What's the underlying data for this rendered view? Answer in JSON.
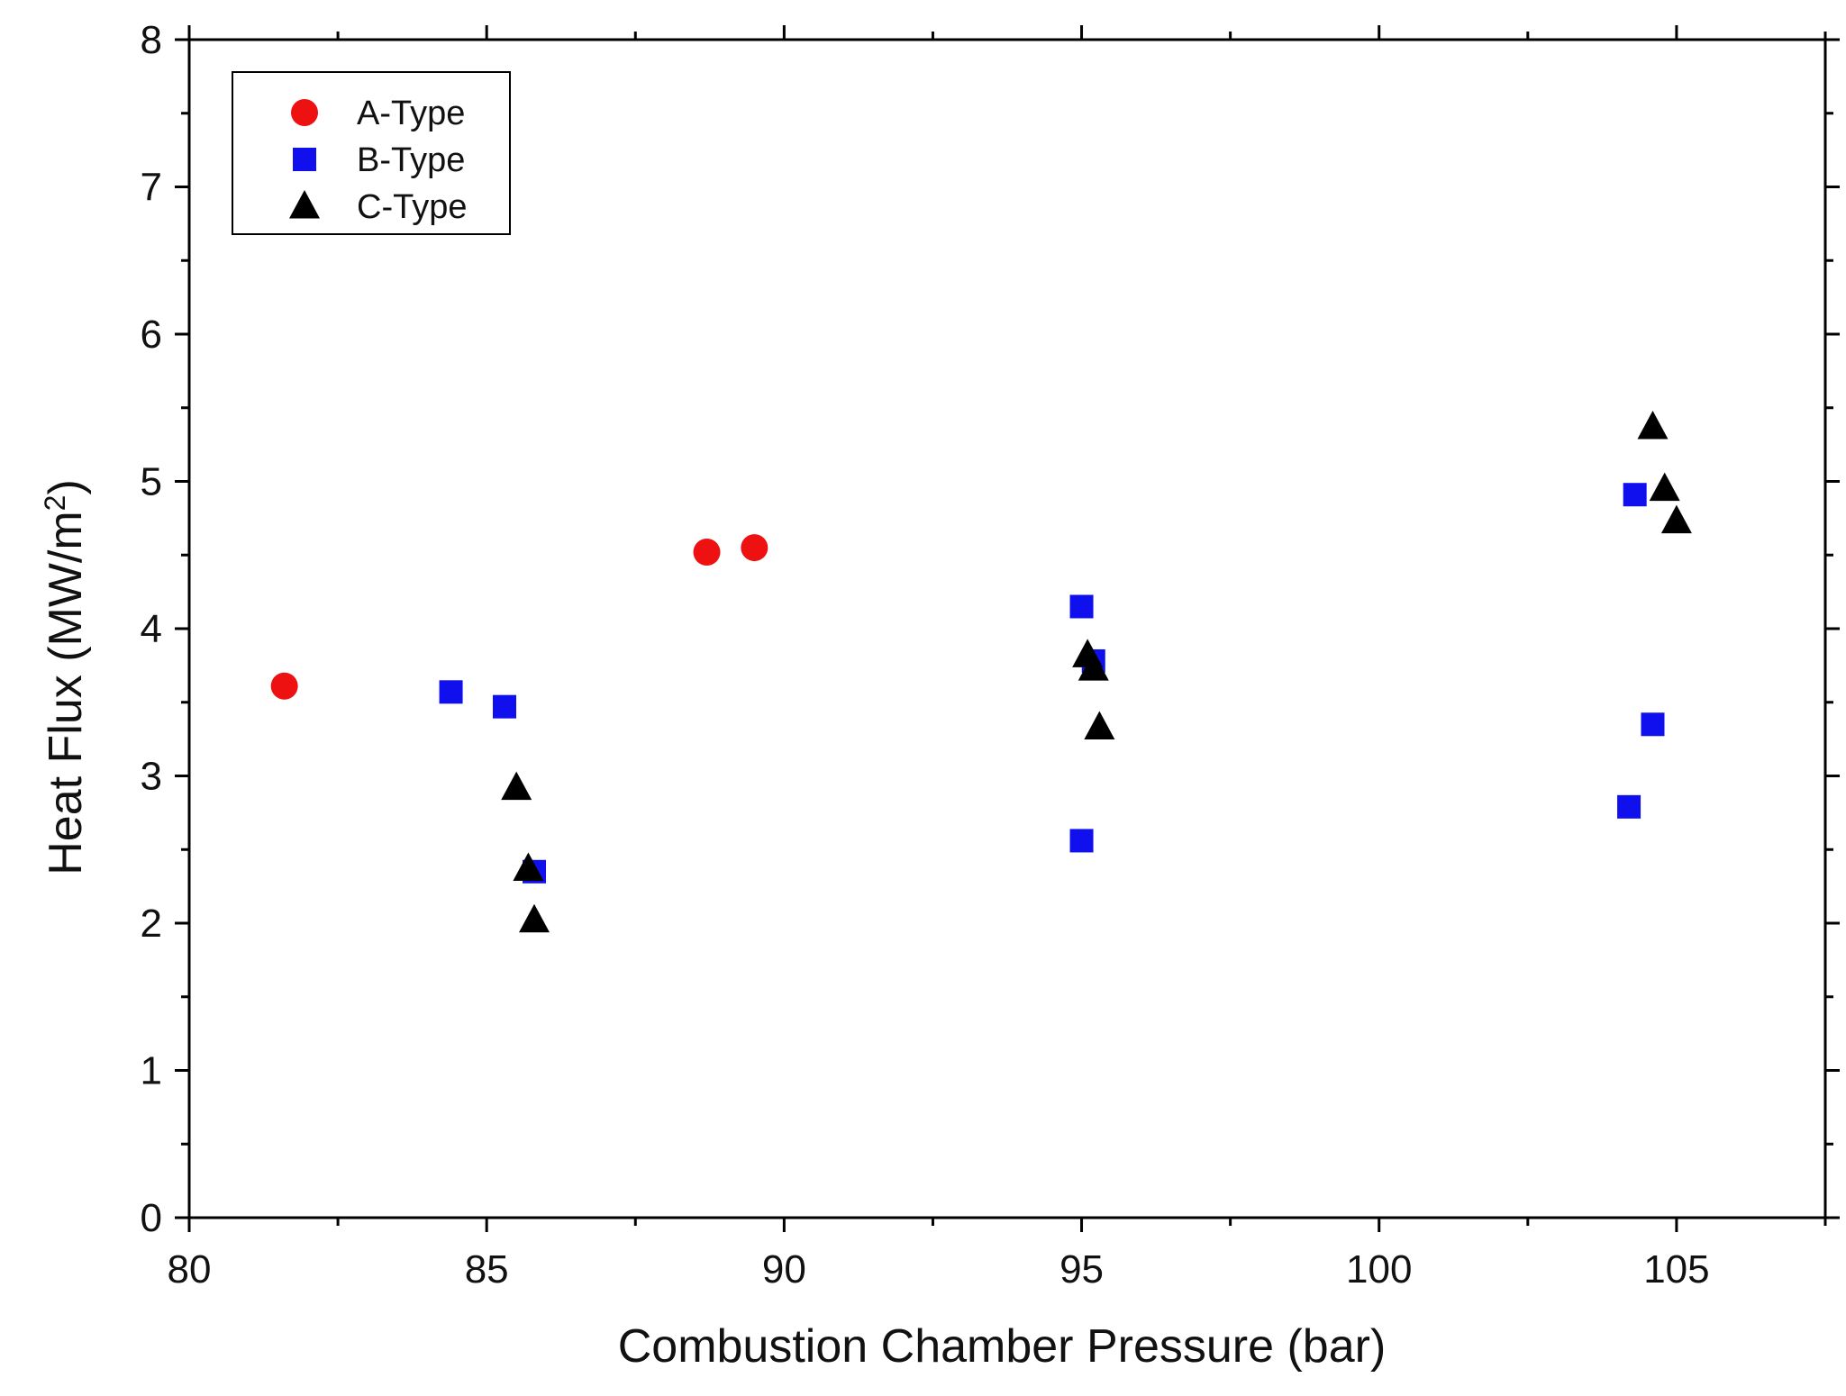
{
  "chart_data": {
    "type": "scatter",
    "title": "",
    "xlabel": "Combustion Chamber Pressure (bar)",
    "ylabel_main": "Heat Flux (MW/m",
    "ylabel_sup": "2",
    "ylabel_close": ")",
    "xlim": [
      80,
      107.5
    ],
    "ylim": [
      0,
      8
    ],
    "xticks": [
      80,
      85,
      90,
      95,
      100,
      105
    ],
    "yticks": [
      0,
      1,
      2,
      3,
      4,
      5,
      6,
      7,
      8
    ],
    "grid": false,
    "legend_position": "top-left",
    "series": [
      {
        "name": "A-Type",
        "marker": "circle",
        "color": "#ee1111",
        "points": [
          {
            "x": 81.6,
            "y": 3.61
          },
          {
            "x": 88.7,
            "y": 4.52
          },
          {
            "x": 89.5,
            "y": 4.55
          }
        ]
      },
      {
        "name": "B-Type",
        "marker": "square",
        "color": "#1010ee",
        "points": [
          {
            "x": 84.4,
            "y": 3.57
          },
          {
            "x": 85.3,
            "y": 3.47
          },
          {
            "x": 85.8,
            "y": 2.35
          },
          {
            "x": 95.0,
            "y": 4.15
          },
          {
            "x": 95.2,
            "y": 3.78
          },
          {
            "x": 95.0,
            "y": 2.56
          },
          {
            "x": 104.3,
            "y": 4.91
          },
          {
            "x": 104.6,
            "y": 3.35
          },
          {
            "x": 104.2,
            "y": 2.79
          }
        ]
      },
      {
        "name": "C-Type",
        "marker": "triangle",
        "color": "#000000",
        "points": [
          {
            "x": 85.5,
            "y": 2.92
          },
          {
            "x": 85.7,
            "y": 2.37
          },
          {
            "x": 85.8,
            "y": 2.02
          },
          {
            "x": 95.1,
            "y": 3.82
          },
          {
            "x": 95.2,
            "y": 3.73
          },
          {
            "x": 95.3,
            "y": 3.33
          },
          {
            "x": 104.6,
            "y": 5.37
          },
          {
            "x": 104.8,
            "y": 4.95
          },
          {
            "x": 105.0,
            "y": 4.73
          }
        ]
      }
    ]
  }
}
